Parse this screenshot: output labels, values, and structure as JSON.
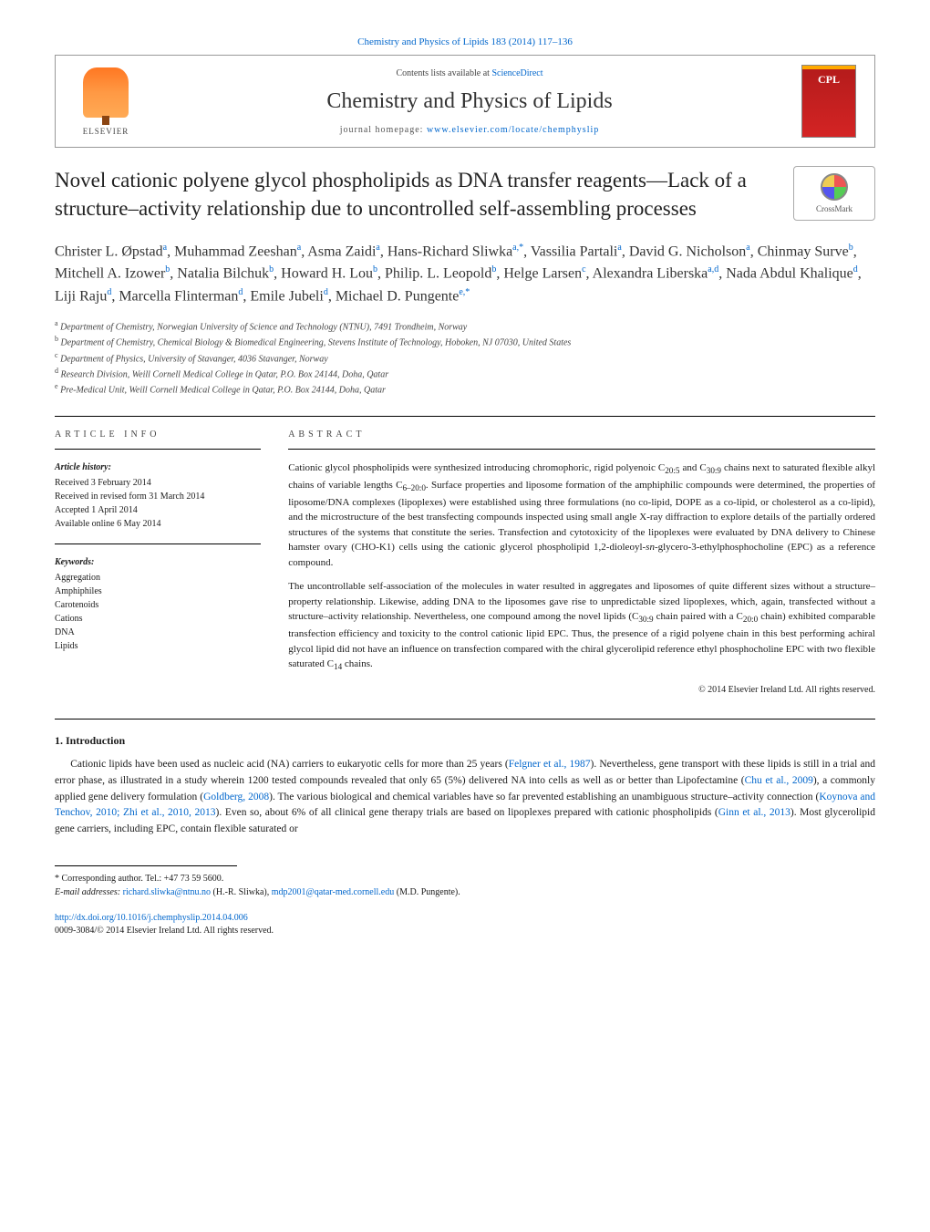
{
  "journal_ref": "Chemistry and Physics of Lipids 183 (2014) 117–136",
  "header": {
    "contents_prefix": "Contents lists available at ",
    "contents_link": "ScienceDirect",
    "journal_name": "Chemistry and Physics of Lipids",
    "homepage_prefix": "journal homepage: ",
    "homepage_url": "www.elsevier.com/locate/chemphyslip",
    "publisher": "ELSEVIER",
    "cover_label": "CPL"
  },
  "article": {
    "title": "Novel cationic polyene glycol phospholipids as DNA transfer reagents—Lack of a structure–activity relationship due to uncontrolled self-assembling processes",
    "crossmark": "CrossMark",
    "authors_html": "Christer L. Øpstad<sup>a</sup>, Muhammad Zeeshan<sup>a</sup>, Asma Zaidi<sup>a</sup>, Hans-Richard Sliwka<sup>a,*</sup>, Vassilia Partali<sup>a</sup>, David G. Nicholson<sup>a</sup>, Chinmay Surve<sup>b</sup>, Mitchell A. Izower<sup>b</sup>, Natalia Bilchuk<sup>b</sup>, Howard H. Lou<sup>b</sup>, Philip. L. Leopold<sup>b</sup>, Helge Larsen<sup>c</sup>, Alexandra Liberska<sup>a,d</sup>, Nada Abdul Khalique<sup>d</sup>, Liji Raju<sup>d</sup>, Marcella Flinterman<sup>d</sup>, Emile Jubeli<sup>d</sup>, Michael D. Pungente<sup>e,*</sup>",
    "affiliations": [
      "<sup>a</sup> Department of Chemistry, Norwegian University of Science and Technology (NTNU), 7491 Trondheim, Norway",
      "<sup>b</sup> Department of Chemistry, Chemical Biology & Biomedical Engineering, Stevens Institute of Technology, Hoboken, NJ 07030, United States",
      "<sup>c</sup> Department of Physics, University of Stavanger, 4036 Stavanger, Norway",
      "<sup>d</sup> Research Division, Weill Cornell Medical College in Qatar, P.O. Box 24144, Doha, Qatar",
      "<sup>e</sup> Pre-Medical Unit, Weill Cornell Medical College in Qatar, P.O. Box 24144, Doha, Qatar"
    ]
  },
  "info": {
    "label": "ARTICLE INFO",
    "history_heading": "Article history:",
    "history_lines": [
      "Received 3 February 2014",
      "Received in revised form 31 March 2014",
      "Accepted 1 April 2014",
      "Available online 6 May 2014"
    ],
    "keywords_heading": "Keywords:",
    "keywords": [
      "Aggregation",
      "Amphiphiles",
      "Carotenoids",
      "Cations",
      "DNA",
      "Lipids"
    ]
  },
  "abstract": {
    "label": "ABSTRACT",
    "paragraphs": [
      "Cationic glycol phospholipids were synthesized introducing chromophoric, rigid polyenoic C<sub>20:5</sub> and C<sub>30:9</sub> chains next to saturated flexible alkyl chains of variable lengths C<sub>6–20:0</sub>. Surface properties and liposome formation of the amphiphilic compounds were determined, the properties of liposome/DNA complexes (lipoplexes) were established using three formulations (no co-lipid, DOPE as a co-lipid, or cholesterol as a co-lipid), and the microstructure of the best transfecting compounds inspected using small angle X-ray diffraction to explore details of the partially ordered structures of the systems that constitute the series. Transfection and cytotoxicity of the lipoplexes were evaluated by DNA delivery to Chinese hamster ovary (CHO-K1) cells using the cationic glycerol phospholipid 1,2-dioleoyl-<i>sn</i>-glycero-3-ethylphosphocholine (EPC) as a reference compound.",
      "The uncontrollable self-association of the molecules in water resulted in aggregates and liposomes of quite different sizes without a structure–property relationship. Likewise, adding DNA to the liposomes gave rise to unpredictable sized lipoplexes, which, again, transfected without a structure–activity relationship. Nevertheless, one compound among the novel lipids (C<sub>30:9</sub> chain paired with a C<sub>20:0</sub> chain) exhibited comparable transfection efficiency and toxicity to the control cationic lipid EPC. Thus, the presence of a rigid polyene chain in this best performing achiral glycol lipid did not have an influence on transfection compared with the chiral glycerolipid reference ethyl phosphocholine EPC with two flexible saturated C<sub>14</sub> chains."
    ],
    "copyright": "© 2014 Elsevier Ireland Ltd. All rights reserved."
  },
  "intro": {
    "heading": "1. Introduction",
    "paragraph_html": "Cationic lipids have been used as nucleic acid (NA) carriers to eukaryotic cells for more than 25 years (<a href='#'>Felgner et al., 1987</a>). Nevertheless, gene transport with these lipids is still in a trial and error phase, as illustrated in a study wherein 1200 tested compounds revealed that only 65 (5%) delivered NA into cells as well as or better than Lipofectamine (<a href='#'>Chu et al., 2009</a>), a commonly applied gene delivery formulation (<a href='#'>Goldberg, 2008</a>). The various biological and chemical variables have so far prevented establishing an unambiguous structure–activity connection (<a href='#'>Koynova and Tenchov, 2010; Zhi et al., 2010, 2013</a>). Even so, about 6% of all clinical gene therapy trials are based on lipoplexes prepared with cationic phospholipids (<a href='#'>Ginn et al., 2013</a>). Most glycerolipid gene carriers, including EPC, contain flexible saturated or"
  },
  "footnote": {
    "corresponding": "* Corresponding author. Tel.: +47 73 59 5600.",
    "emails_prefix": "E-mail addresses: ",
    "email1": "richard.sliwka@ntnu.no",
    "email1_affix": " (H.-R. Sliwka), ",
    "email2": "mdp2001@qatar-med.cornell.edu",
    "email2_affix": " (M.D. Pungente)."
  },
  "doi": {
    "url": "http://dx.doi.org/10.1016/j.chemphyslip.2014.04.006",
    "issn_line": "0009-3084/© 2014 Elsevier Ireland Ltd. All rights reserved."
  },
  "colors": {
    "link": "#0066cc",
    "text": "#1a1a1a",
    "rule": "#000000"
  }
}
